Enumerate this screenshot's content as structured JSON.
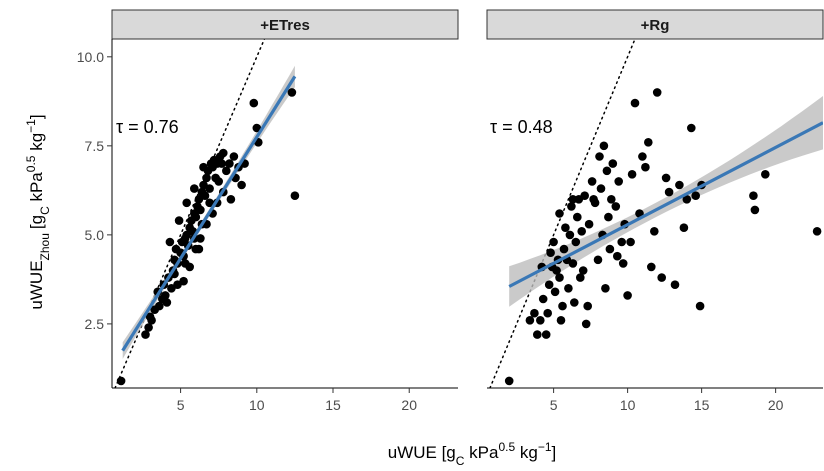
{
  "chart_data": [
    {
      "type": "scatter",
      "panel": "+ETres",
      "annotation": "τ = 0.76",
      "x_ticks": [
        5,
        10,
        15,
        20
      ],
      "y_ticks": [
        2.5,
        5.0,
        7.5,
        10.0
      ],
      "y_tick_labels": [
        "2.5",
        "5.0",
        "7.5",
        "10.0"
      ],
      "xlim": [
        0.5,
        23.2
      ],
      "ylim": [
        0.7,
        10.5
      ],
      "reference_line": "1:1",
      "fit": {
        "x0": 1.2,
        "y0": 1.75,
        "x1": 12.5,
        "y1": 9.45,
        "band_halfwidth_ends": 0.3,
        "band_halfwidth_mid": 0.1
      },
      "points": [
        [
          1.1,
          0.9
        ],
        [
          2.7,
          2.2
        ],
        [
          2.9,
          2.4
        ],
        [
          3.1,
          2.6
        ],
        [
          3.3,
          2.9
        ],
        [
          3.6,
          3.0
        ],
        [
          3.8,
          3.2
        ],
        [
          4.0,
          3.3
        ],
        [
          3.9,
          3.6
        ],
        [
          4.2,
          3.8
        ],
        [
          4.4,
          3.5
        ],
        [
          4.5,
          4.0
        ],
        [
          4.6,
          4.3
        ],
        [
          4.7,
          4.6
        ],
        [
          4.8,
          4.2
        ],
        [
          5.0,
          4.5
        ],
        [
          5.1,
          4.8
        ],
        [
          5.2,
          4.4
        ],
        [
          5.3,
          4.9
        ],
        [
          5.4,
          5.0
        ],
        [
          5.5,
          4.7
        ],
        [
          5.6,
          5.2
        ],
        [
          5.7,
          5.4
        ],
        [
          5.8,
          5.1
        ],
        [
          5.9,
          5.6
        ],
        [
          6.0,
          5.5
        ],
        [
          6.1,
          5.8
        ],
        [
          6.2,
          6.0
        ],
        [
          6.3,
          5.7
        ],
        [
          6.4,
          6.2
        ],
        [
          6.5,
          6.4
        ],
        [
          6.6,
          6.1
        ],
        [
          6.7,
          6.6
        ],
        [
          6.8,
          6.8
        ],
        [
          6.9,
          6.3
        ],
        [
          7.0,
          7.0
        ],
        [
          7.1,
          6.9
        ],
        [
          7.2,
          7.1
        ],
        [
          7.4,
          7.0
        ],
        [
          7.5,
          6.5
        ],
        [
          7.6,
          7.2
        ],
        [
          7.8,
          7.3
        ],
        [
          8.0,
          6.8
        ],
        [
          8.2,
          7.0
        ],
        [
          8.5,
          7.2
        ],
        [
          8.8,
          6.9
        ],
        [
          9.0,
          6.4
        ],
        [
          9.2,
          7.0
        ],
        [
          9.8,
          8.7
        ],
        [
          10.0,
          8.0
        ],
        [
          10.1,
          7.6
        ],
        [
          12.3,
          9.0
        ],
        [
          12.5,
          6.1
        ],
        [
          5.2,
          3.7
        ],
        [
          5.6,
          4.1
        ],
        [
          6.0,
          4.6
        ],
        [
          6.3,
          4.9
        ],
        [
          6.7,
          5.3
        ],
        [
          7.1,
          5.6
        ],
        [
          7.4,
          5.9
        ],
        [
          7.8,
          6.2
        ],
        [
          8.3,
          6.0
        ],
        [
          4.3,
          4.8
        ],
        [
          4.9,
          5.4
        ],
        [
          5.4,
          5.9
        ],
        [
          5.9,
          6.3
        ],
        [
          6.5,
          6.9
        ],
        [
          3.5,
          3.4
        ],
        [
          4.1,
          3.1
        ],
        [
          4.6,
          3.9
        ],
        [
          5.3,
          4.2
        ],
        [
          5.9,
          4.9
        ],
        [
          6.4,
          5.3
        ],
        [
          6.9,
          5.9
        ],
        [
          7.3,
          6.6
        ],
        [
          3.0,
          2.7
        ],
        [
          4.8,
          3.6
        ],
        [
          6.2,
          4.6
        ],
        [
          8.6,
          6.6
        ],
        [
          7.7,
          7.0
        ]
      ]
    },
    {
      "type": "scatter",
      "panel": "+Rg",
      "annotation": "τ = 0.48",
      "x_ticks": [
        5,
        10,
        15,
        20
      ],
      "y_ticks": [
        2.5,
        5.0,
        7.5,
        10.0
      ],
      "xlim": [
        0.5,
        23.2
      ],
      "ylim": [
        0.7,
        10.5
      ],
      "reference_line": "1:1",
      "fit": {
        "x0": 2.0,
        "y0": 3.55,
        "x1": 23.2,
        "y1": 8.15,
        "band_halfwidth_ends": 0.75,
        "band_halfwidth_mid": 0.2
      },
      "points": [
        [
          2.0,
          0.9
        ],
        [
          3.4,
          2.6
        ],
        [
          3.7,
          2.8
        ],
        [
          3.9,
          2.2
        ],
        [
          4.1,
          2.6
        ],
        [
          4.3,
          3.2
        ],
        [
          4.5,
          2.2
        ],
        [
          4.6,
          2.8
        ],
        [
          4.7,
          3.6
        ],
        [
          4.8,
          4.5
        ],
        [
          4.9,
          4.1
        ],
        [
          5.0,
          4.8
        ],
        [
          5.1,
          3.4
        ],
        [
          5.2,
          4.0
        ],
        [
          5.3,
          4.3
        ],
        [
          5.4,
          3.8
        ],
        [
          5.5,
          2.6
        ],
        [
          5.6,
          3.0
        ],
        [
          5.7,
          4.6
        ],
        [
          5.8,
          5.2
        ],
        [
          5.9,
          4.3
        ],
        [
          6.0,
          3.5
        ],
        [
          6.1,
          5.0
        ],
        [
          6.2,
          5.8
        ],
        [
          6.3,
          4.2
        ],
        [
          6.4,
          3.1
        ],
        [
          6.5,
          4.8
        ],
        [
          6.6,
          5.5
        ],
        [
          6.7,
          6.0
        ],
        [
          6.8,
          3.8
        ],
        [
          6.9,
          5.1
        ],
        [
          7.0,
          4.0
        ],
        [
          7.1,
          6.1
        ],
        [
          7.2,
          2.5
        ],
        [
          7.4,
          5.3
        ],
        [
          7.6,
          6.5
        ],
        [
          7.8,
          5.9
        ],
        [
          8.0,
          4.3
        ],
        [
          8.1,
          7.2
        ],
        [
          8.2,
          6.3
        ],
        [
          8.3,
          5.0
        ],
        [
          8.5,
          3.5
        ],
        [
          8.6,
          6.8
        ],
        [
          8.7,
          5.5
        ],
        [
          8.8,
          4.6
        ],
        [
          8.9,
          6.0
        ],
        [
          9.0,
          7.0
        ],
        [
          9.2,
          5.8
        ],
        [
          9.4,
          6.5
        ],
        [
          9.6,
          4.8
        ],
        [
          9.7,
          4.2
        ],
        [
          9.8,
          5.3
        ],
        [
          10.0,
          3.3
        ],
        [
          10.2,
          4.8
        ],
        [
          10.5,
          8.7
        ],
        [
          10.8,
          5.6
        ],
        [
          11.0,
          7.2
        ],
        [
          11.2,
          6.9
        ],
        [
          11.4,
          7.6
        ],
        [
          11.6,
          4.1
        ],
        [
          11.8,
          5.1
        ],
        [
          12.0,
          9.0
        ],
        [
          12.3,
          3.8
        ],
        [
          12.8,
          6.2
        ],
        [
          13.2,
          3.6
        ],
        [
          13.5,
          6.4
        ],
        [
          13.8,
          5.2
        ],
        [
          14.0,
          6.0
        ],
        [
          14.3,
          8.0
        ],
        [
          14.6,
          6.1
        ],
        [
          14.9,
          3.0
        ],
        [
          15.0,
          6.4
        ],
        [
          18.5,
          6.1
        ],
        [
          18.6,
          5.7
        ],
        [
          19.3,
          6.7
        ],
        [
          22.8,
          5.1
        ],
        [
          4.2,
          4.1
        ],
        [
          5.4,
          5.6
        ],
        [
          7.3,
          3.0
        ],
        [
          9.3,
          4.4
        ],
        [
          6.3,
          6.0
        ],
        [
          7.7,
          6.0
        ],
        [
          10.3,
          6.7
        ],
        [
          12.6,
          6.6
        ],
        [
          8.4,
          7.5
        ]
      ]
    }
  ],
  "axes": {
    "y_title_main": "uWUE",
    "y_title_sub": "Zhou",
    "y_title_unit_start": "[g",
    "y_title_unit_c": "C",
    "y_title_unit_mid": " kPa",
    "y_title_unit_exp": "0.5",
    "y_title_unit_kg": " kg",
    "y_title_unit_kgexp": "−1",
    "y_title_unit_end": "]",
    "x_title_main": "uWUE [g",
    "x_title_c": "C",
    "x_title_mid": " kPa",
    "x_title_exp": "0.5",
    "x_title_kg": " kg",
    "x_title_kgexp": "−1",
    "x_title_end": "]"
  },
  "colors": {
    "points": "#000000",
    "fit_line": "#3a78b6",
    "band": "#bdbdbd",
    "strip": "#d9d9d9",
    "ref_line": "#000000"
  }
}
